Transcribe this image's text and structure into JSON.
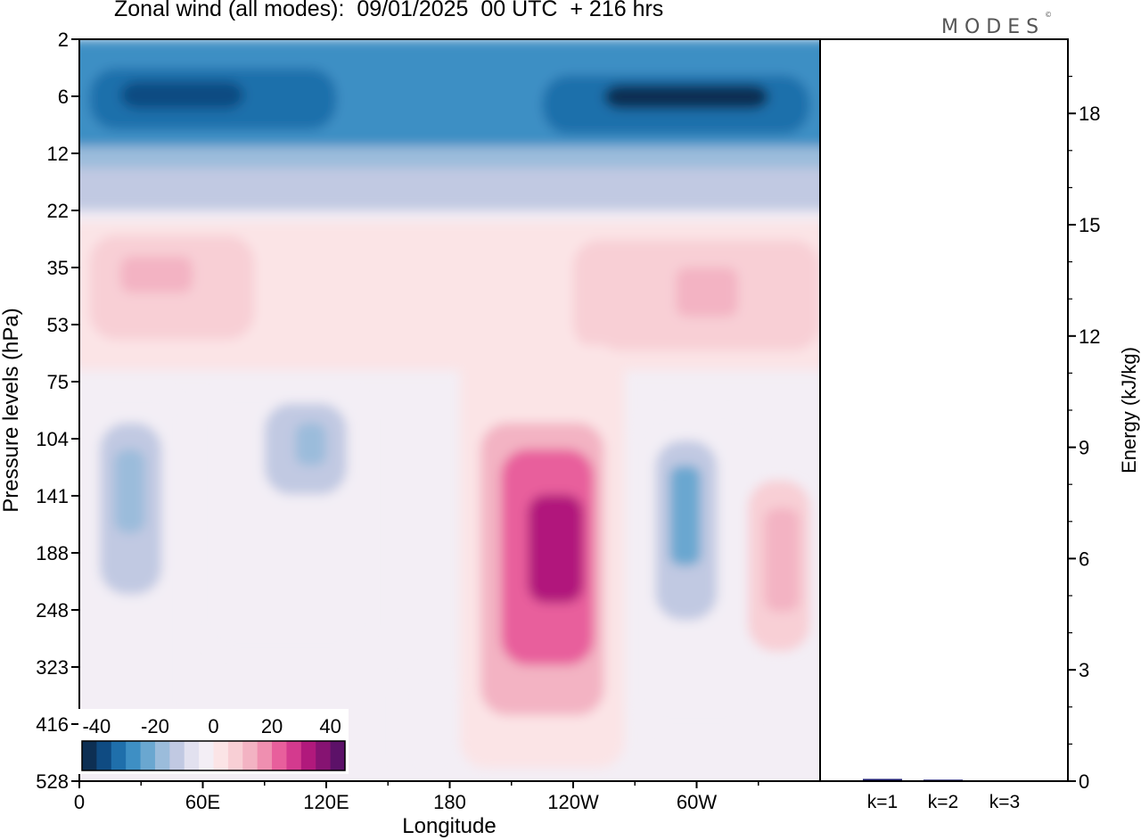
{
  "header": {
    "title": "Zonal wind (all modes):  09/01/2025  00 UTC  + 216 hrs",
    "logo": "MODES",
    "logo_mark": "©"
  },
  "chart_data": [
    {
      "type": "heatmap",
      "title": "Zonal wind (all modes):  09/01/2025  00 UTC  + 216 hrs",
      "xlabel": "Longitude",
      "ylabel": "Pressure levels (hPa)",
      "x_ticks": [
        "0",
        "60E",
        "120E",
        "180",
        "120W",
        "60W"
      ],
      "x_tick_lon": [
        0,
        60,
        120,
        180,
        240,
        300
      ],
      "xlim": [
        0,
        360
      ],
      "y_ticks": [
        "2",
        "6",
        "12",
        "22",
        "35",
        "53",
        "75",
        "104",
        "141",
        "188",
        "248",
        "323",
        "416",
        "528"
      ],
      "y_order": "top-to-bottom",
      "colorbar": {
        "tick_labels": [
          "-40",
          "-20",
          "0",
          "20",
          "40"
        ],
        "tick_values": [
          -40,
          -20,
          0,
          20,
          40
        ],
        "range": [
          -45,
          45
        ],
        "step": 5,
        "colors": [
          "#0d2f53",
          "#0f4b82",
          "#1f6fab",
          "#3e8fc4",
          "#6aa7d0",
          "#9bbcdb",
          "#c1c9e2",
          "#e2e1ef",
          "#f3eef5",
          "#fbe4e6",
          "#f8cfd5",
          "#f3b3c3",
          "#ef8fb0",
          "#e85f9c",
          "#d43a8e",
          "#b1197c",
          "#861372",
          "#5c1168"
        ]
      },
      "features": [
        {
          "label": "stratospheric easterlies",
          "lon": [
            0,
            360
          ],
          "p": [
            2,
            16
          ],
          "u": -35
        },
        {
          "label": "westerly layer",
          "lon": [
            0,
            360
          ],
          "p": [
            25,
            75
          ],
          "u": 8
        },
        {
          "label": "easterly core",
          "lon": [
            15,
            35
          ],
          "p": [
            104,
            188
          ],
          "u": -20
        },
        {
          "label": "easterly core",
          "lon": [
            100,
            125
          ],
          "p": [
            90,
            130
          ],
          "u": -18
        },
        {
          "label": "westerly duct",
          "lon": [
            205,
            250
          ],
          "p": [
            110,
            300
          ],
          "u": 30
        },
        {
          "label": "easterly core",
          "lon": [
            285,
            305
          ],
          "p": [
            120,
            200
          ],
          "u": -22
        },
        {
          "label": "westerly core",
          "lon": [
            330,
            350
          ],
          "p": [
            150,
            240
          ],
          "u": 12
        }
      ]
    },
    {
      "type": "bar",
      "ylabel": "Energy (kJ/kg)",
      "categories": [
        "k=1",
        "k=2",
        "k=3"
      ],
      "values": [
        0.06,
        0.04,
        0.02
      ],
      "ylim": [
        0,
        20
      ],
      "y_ticks": [
        "0",
        "3",
        "6",
        "9",
        "12",
        "15",
        "18"
      ],
      "y_tick_values": [
        0,
        3,
        6,
        9,
        12,
        15,
        18
      ],
      "bar_color": "#1a1a6e"
    }
  ]
}
